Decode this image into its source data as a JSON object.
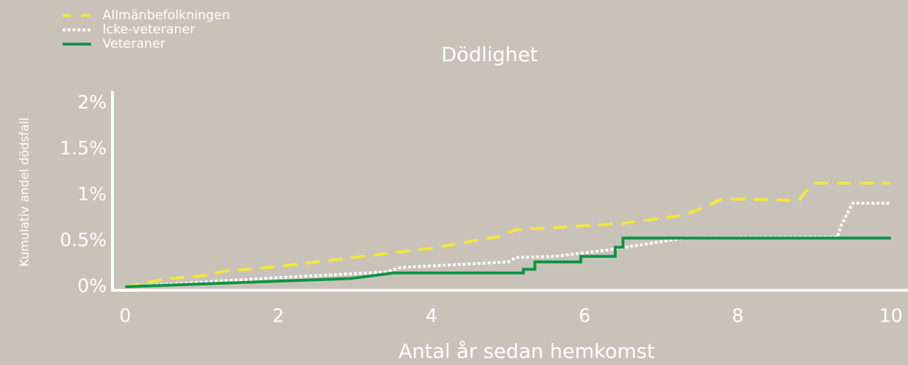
{
  "chart_data": {
    "type": "line",
    "title": "Dödlighet",
    "xlabel": "Antal år sedan hemkomst",
    "ylabel": "Kumulativ andel dödsfall",
    "xlim": [
      0,
      10
    ],
    "xticks": [
      0,
      2,
      4,
      6,
      8,
      10
    ],
    "ylim": [
      0,
      2
    ],
    "yticks": [
      {
        "value": 0,
        "label": "0%"
      },
      {
        "value": 0.5,
        "label": "0.5%"
      },
      {
        "value": 1,
        "label": "1%"
      },
      {
        "value": 1.5,
        "label": "1.5%"
      },
      {
        "value": 2,
        "label": "2%"
      }
    ],
    "legend": "upper left",
    "series": [
      {
        "name": "Allmänbefolkningen",
        "color": "#f2e83a",
        "style": "dashed",
        "x": [
          0,
          0.5,
          1,
          1.3,
          2,
          3,
          4,
          4.9,
          5.1,
          6.5,
          7.3,
          7.6,
          7.8,
          8.8,
          8.9,
          9.0,
          10
        ],
        "values": [
          0,
          0.08,
          0.12,
          0.17,
          0.22,
          0.32,
          0.42,
          0.55,
          0.62,
          0.69,
          0.78,
          0.88,
          0.96,
          0.94,
          1.05,
          1.13,
          1.13
        ]
      },
      {
        "name": "Icke-veteraner",
        "color": "#ffffff",
        "style": "dotted",
        "x": [
          0,
          2,
          3.4,
          3.6,
          5,
          5.1,
          5.6,
          6.3,
          7.3,
          9.3,
          9.35,
          9.5,
          10
        ],
        "values": [
          0,
          0.1,
          0.16,
          0.21,
          0.27,
          0.32,
          0.33,
          0.4,
          0.53,
          0.54,
          0.67,
          0.91,
          0.91
        ]
      },
      {
        "name": "Veteraner",
        "color": "#0a9444",
        "style": "solid",
        "x": [
          0,
          2.95,
          3.5,
          5.2,
          5.2,
          5.35,
          5.35,
          5.95,
          5.95,
          6.4,
          6.4,
          6.5,
          6.5,
          10
        ],
        "values": [
          0,
          0.09,
          0.15,
          0.15,
          0.19,
          0.19,
          0.27,
          0.27,
          0.33,
          0.33,
          0.43,
          0.43,
          0.53,
          0.53
        ]
      }
    ]
  }
}
